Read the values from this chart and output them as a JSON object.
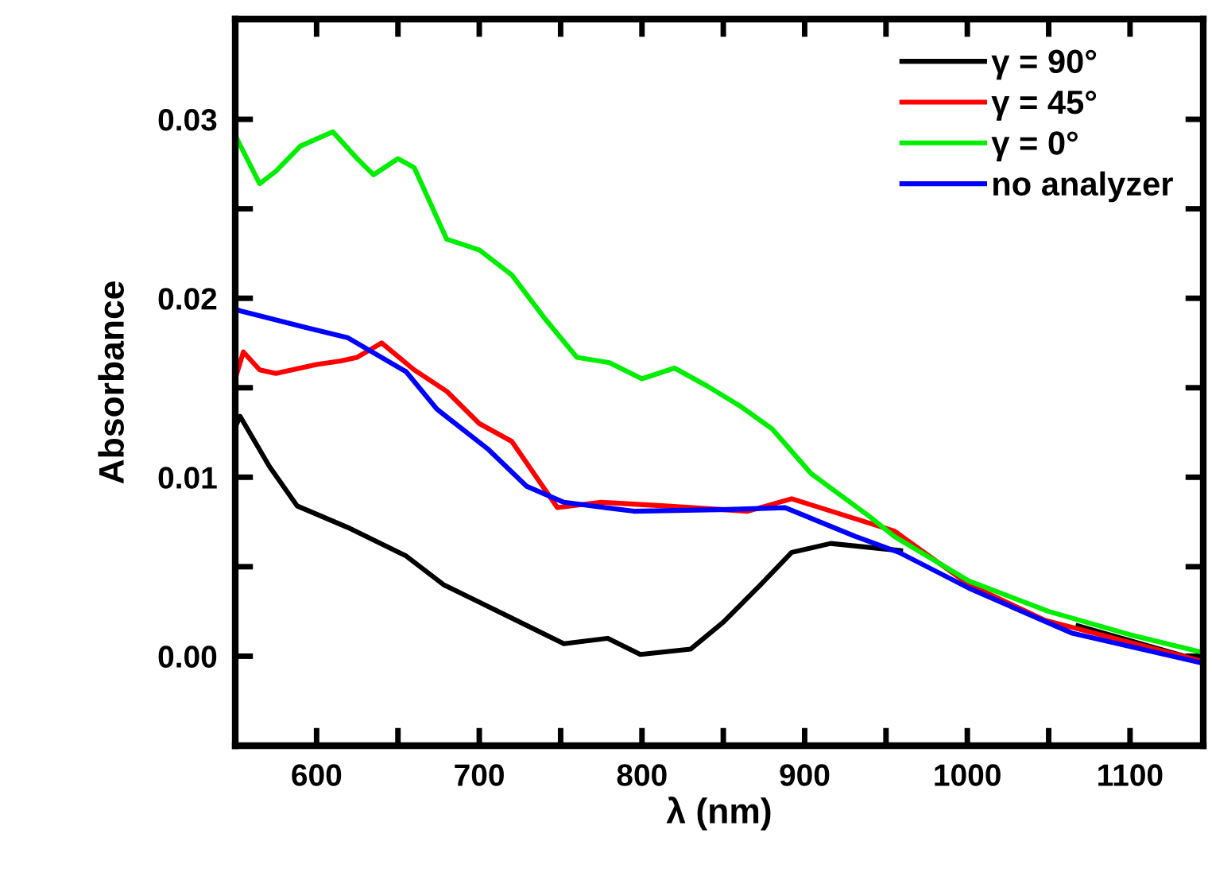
{
  "chart_data": {
    "type": "line",
    "xlabel": "λ (nm)",
    "ylabel": "Absorbance",
    "xlim": [
      550,
      1145
    ],
    "ylim": [
      -0.005,
      0.0356
    ],
    "xticks": [
      600,
      {
        "value": 650,
        "label": null
      },
      700,
      {
        "value": 750,
        "label": null
      },
      800,
      {
        "value": 850,
        "label": null
      },
      900,
      {
        "value": 950,
        "label": null
      },
      1000,
      {
        "value": 1050,
        "label": null
      },
      1100
    ],
    "yticks": [
      {
        "value": 0,
        "label": "0.00"
      },
      {
        "value": 0.005,
        "label": null
      },
      {
        "value": 0.01,
        "label": "0.01"
      },
      {
        "value": 0.015,
        "label": null
      },
      {
        "value": 0.02,
        "label": "0.02"
      },
      {
        "value": 0.025,
        "label": null
      },
      {
        "value": 0.03,
        "label": "0.03"
      }
    ],
    "grid": false,
    "legend": "top right",
    "marker": "none",
    "line_style": "solid",
    "series": [
      {
        "name": "γ = 90°",
        "color": "#000000",
        "x": [
          550,
          553,
          571,
          588,
          619,
          655,
          678,
          705,
          752,
          779,
          799,
          830,
          850,
          873,
          892,
          916,
          959,
          1001,
          1068,
          1145
        ],
        "values": [
          0.0128,
          0.0134,
          0.0106,
          0.0084,
          0.0072,
          0.0056,
          0.004,
          0.0028,
          0.0007,
          0.001,
          0.0001,
          0.0004,
          0.0019,
          0.004,
          0.0058,
          0.0063,
          0.0059,
          null,
          0.0017,
          -0.0003
        ]
      },
      {
        "name": "γ = 45°",
        "color": "#ff0000",
        "x": [
          550,
          555,
          565,
          575,
          600,
          615,
          625,
          640,
          660,
          680,
          700,
          720,
          748,
          775,
          814,
          865,
          892,
          955,
          1001,
          1048,
          1145
        ],
        "values": [
          0.0155,
          0.017,
          0.016,
          0.0158,
          0.0163,
          0.0165,
          0.0167,
          0.0175,
          0.016,
          0.0148,
          0.013,
          0.012,
          0.0083,
          0.0086,
          0.0084,
          0.0081,
          0.0088,
          0.007,
          0.004,
          0.002,
          -0.0003
        ]
      },
      {
        "name": "γ = 0°",
        "color": "#00ee00",
        "x": [
          550,
          565,
          575,
          590,
          610,
          625,
          635,
          650,
          660,
          680,
          700,
          720,
          740,
          760,
          780,
          800,
          820,
          840,
          860,
          880,
          904,
          940,
          955,
          1001,
          1050,
          1100,
          1145
        ],
        "values": [
          0.0291,
          0.0264,
          0.0271,
          0.0285,
          0.0293,
          0.0278,
          0.0269,
          0.0278,
          0.0273,
          0.0233,
          0.0227,
          0.0213,
          0.0189,
          0.0167,
          0.0164,
          0.0155,
          0.0161,
          0.0151,
          0.014,
          0.0127,
          0.0102,
          0.0078,
          0.0067,
          0.0042,
          0.0025,
          0.0012,
          0.0002
        ]
      },
      {
        "name": "no analyzer",
        "color": "#0000ff",
        "x": [
          550,
          553,
          592,
          619,
          655,
          674,
          705,
          729,
          752,
          795,
          853,
          888,
          931,
          958,
          1001,
          1064,
          1145
        ],
        "values": [
          0.0194,
          0.0193,
          0.0184,
          0.0178,
          0.0159,
          0.0138,
          0.0116,
          0.0095,
          0.0086,
          0.0081,
          0.0082,
          0.0083,
          0.0067,
          0.0058,
          0.0038,
          0.0013,
          -0.0004
        ]
      }
    ]
  }
}
